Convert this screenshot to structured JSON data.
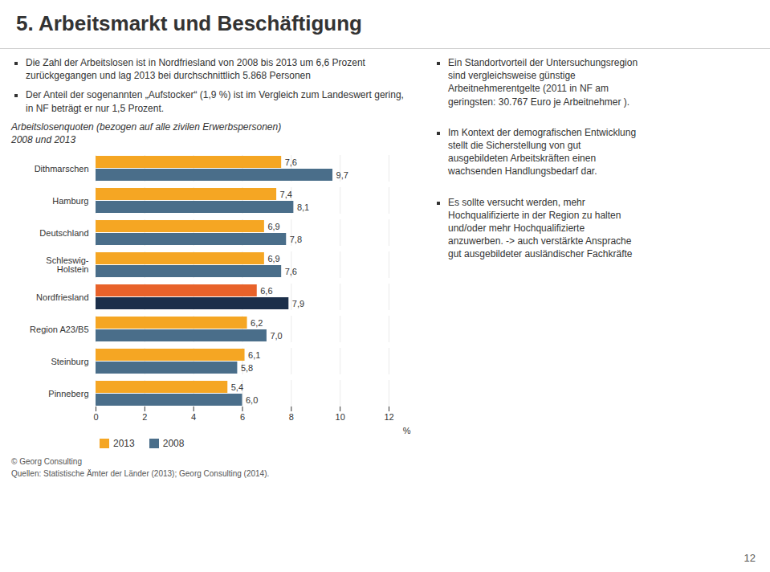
{
  "chart_data": {
    "type": "bar",
    "orientation": "horizontal",
    "title": "Arbeitslosenquoten (bezogen auf alle zivilen Erwerbspersonen)",
    "subtitle": "2008 und 2013",
    "categories": [
      "Dithmarschen",
      "Hamburg",
      "Deutschland",
      "Schleswig-\nHolstein",
      "Nordfriesland",
      "Region A23/B5",
      "Steinburg",
      "Pinneberg"
    ],
    "series": [
      {
        "name": "2013",
        "color": "#F5A623",
        "colors": [
          "#F5A623",
          "#F5A623",
          "#F5A623",
          "#F5A623",
          "#E8622A",
          "#F5A623",
          "#F5A623",
          "#F5A623"
        ],
        "values": [
          7.6,
          7.4,
          6.9,
          6.9,
          6.6,
          6.2,
          6.1,
          5.4
        ],
        "value_labels": [
          "7,6",
          "7,4",
          "6,9",
          "6,9",
          "6,6",
          "6,2",
          "6,1",
          "5,4"
        ]
      },
      {
        "name": "2008",
        "color": "#4A6E8A",
        "colors": [
          "#4A6E8A",
          "#4A6E8A",
          "#4A6E8A",
          "#4A6E8A",
          "#1C2F4A",
          "#4A6E8A",
          "#4A6E8A",
          "#4A6E8A"
        ],
        "values": [
          9.7,
          8.1,
          7.8,
          7.6,
          7.9,
          7.0,
          5.8,
          6.0
        ],
        "value_labels": [
          "9,7",
          "8,1",
          "7,8",
          "7,6",
          "7,9",
          "7,0",
          "5,8",
          "6,0"
        ]
      }
    ],
    "xlabel": "%",
    "xlim": [
      0,
      12
    ],
    "xticks": [
      0,
      2,
      4,
      6,
      8,
      10,
      12
    ],
    "grid": true,
    "data_labels": true,
    "legend": "bottom",
    "annotations": [
      "5. Arbeitsmarkt und Beschäftigung",
      "Die Zahl der Arbeitslosen ist in Nordfriesland von 2008 bis 2013 um 6,6 Prozent\nzurückgegangen und lag 2013 bei durchschnittlich 5.868 Personen",
      "Der Anteil der sogenannten „Aufstocker“ (1,9 %) ist im Vergleich zum Landeswert gering,\nin NF beträgt er nur 1,5 Prozent.",
      "Ein Standortvorteil der Untersuchungsregion\nsind vergleichsweise günstige\nArbeitnehmerentgelte (2011 in NF am\ngeringsten: 30.767 Euro je Arbeitnehmer ).",
      "Im Kontext der demografischen Entwicklung\nstellt die Sicherstellung von gut\nausgebildeten Arbeitskräften einen\nwachsenden Handlungsbedarf dar.",
      "Es sollte versucht werden, mehr\nHochqualifizierte in der Region zu halten\nund/oder mehr Hochqualifizierte\nanzuwerben. -> auch verstärkte Ansprache\ngut ausgebildeter ausländischer Fachkräfte",
      "© Georg Consulting",
      "Quellen: Statistische Ämter der Länder (2013); Georg Consulting (2014).",
      "12"
    ]
  }
}
